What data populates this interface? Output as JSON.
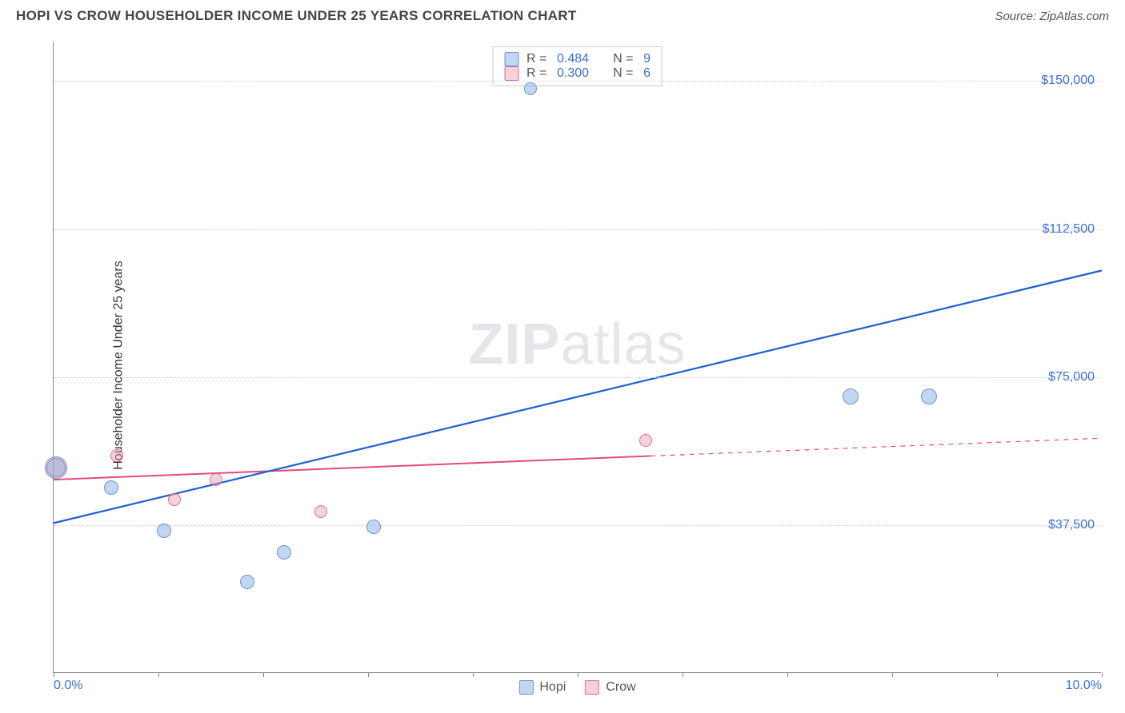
{
  "header": {
    "title": "HOPI VS CROW HOUSEHOLDER INCOME UNDER 25 YEARS CORRELATION CHART",
    "source": "Source: ZipAtlas.com"
  },
  "chart": {
    "type": "scatter",
    "ylabel": "Householder Income Under 25 years",
    "xlim": [
      0,
      10
    ],
    "ylim": [
      0,
      160000
    ],
    "background_color": "#ffffff",
    "grid_color": "#d6d6d6",
    "axis_color": "#888888",
    "tick_label_color": "#3b6fd6",
    "yticks": [
      {
        "value": 37500,
        "label": "$37,500"
      },
      {
        "value": 75000,
        "label": "$75,000"
      },
      {
        "value": 112500,
        "label": "$112,500"
      },
      {
        "value": 150000,
        "label": "$150,000"
      }
    ],
    "xticks": [
      0,
      1,
      2,
      3,
      4,
      5,
      6,
      7,
      8,
      9,
      10
    ],
    "xtick_labels": [
      {
        "value": 0,
        "label": "0.0%"
      },
      {
        "value": 10,
        "label": "10.0%"
      }
    ],
    "watermark": {
      "part1": "ZIP",
      "part2": "atlas"
    },
    "series": {
      "hopi": {
        "label": "Hopi",
        "color_fill": "rgba(120,165,225,0.45)",
        "color_stroke": "#6a95cf",
        "trend_color": "#1f5fd0",
        "trend_width": 2.2,
        "r_label": "R =",
        "r_value": "0.484",
        "n_label": "N =",
        "n_value": "9",
        "trend": {
          "x1": 0,
          "y1": 38000,
          "x2": 10,
          "y2": 102000
        },
        "points": [
          {
            "x": 0.02,
            "y": 52000,
            "r": 14
          },
          {
            "x": 0.55,
            "y": 47000,
            "r": 9
          },
          {
            "x": 1.05,
            "y": 36000,
            "r": 9
          },
          {
            "x": 1.85,
            "y": 23000,
            "r": 9
          },
          {
            "x": 2.2,
            "y": 30500,
            "r": 9
          },
          {
            "x": 3.05,
            "y": 37000,
            "r": 9
          },
          {
            "x": 4.55,
            "y": 148000,
            "r": 8
          },
          {
            "x": 7.6,
            "y": 70000,
            "r": 10
          },
          {
            "x": 8.35,
            "y": 70000,
            "r": 10
          }
        ]
      },
      "crow": {
        "label": "Crow",
        "color_fill": "rgba(235,150,175,0.45)",
        "color_stroke": "#d76f94",
        "trend_color": "#e24a7a",
        "trend_width": 2,
        "r_label": "R =",
        "r_value": "0.300",
        "n_label": "N =",
        "n_value": "6",
        "trend_solid": {
          "x1": 0,
          "y1": 49000,
          "x2": 5.7,
          "y2": 55000
        },
        "trend_dashed": {
          "x1": 5.7,
          "y1": 55000,
          "x2": 10,
          "y2": 59500
        },
        "points": [
          {
            "x": 0.02,
            "y": 52000,
            "r": 12
          },
          {
            "x": 0.6,
            "y": 55000,
            "r": 8
          },
          {
            "x": 1.15,
            "y": 44000,
            "r": 8
          },
          {
            "x": 1.55,
            "y": 49000,
            "r": 8
          },
          {
            "x": 2.55,
            "y": 41000,
            "r": 8
          },
          {
            "x": 5.65,
            "y": 59000,
            "r": 8
          }
        ]
      }
    }
  }
}
